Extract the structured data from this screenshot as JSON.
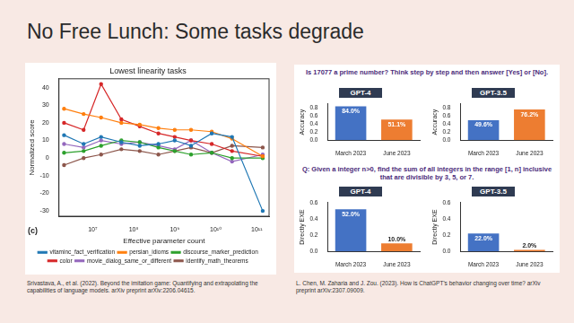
{
  "slide_title": "No Free Lunch: Some tasks degrade",
  "citations": [
    "Srivastava, A., et al. (2022). Beyond the imitation game: Quantifying and extrapolating the capabilities of language models. arXiv preprint arXiv:2206.04615.",
    "L. Chen, M. Zaharia and J. Zou. (2023). How is ChatGPT's behavior changing over time? arXiv preprint arXiv:2307.09009."
  ],
  "questions": [
    "Is 17077 a prime number? Think step by step and then answer [Yes] or [No].",
    "Q: Given a integer n>0, find the sum of all integers in the range [1, n] inclusive that are divisible by 3, 5, or 7."
  ],
  "chart_data": [
    {
      "type": "line",
      "title": "Lowest linearity tasks",
      "x_label": "Effective parameter count",
      "y_label": "Normalized score",
      "annotation": "(c)",
      "log": "x",
      "grid": false,
      "legend": "bottom",
      "marker": "circle",
      "x": [
        2000000,
        6000000,
        16000000,
        50000000,
        140000000,
        400000000,
        1000000000,
        2500000000,
        8000000000,
        25000000000,
        140000000000
      ],
      "series": [
        {
          "name": "vitaminc_fact_verification",
          "color": "#1f77b4",
          "values": [
            13,
            8,
            12,
            9,
            7,
            8,
            10,
            7,
            14,
            12,
            -30
          ]
        },
        {
          "name": "persian_idioms",
          "color": "#ff7f0e",
          "values": [
            28,
            25,
            23,
            20,
            19,
            17,
            16,
            16,
            15,
            11,
            1
          ]
        },
        {
          "name": "discourse_marker_prediction",
          "color": "#2ca02c",
          "values": [
            3,
            4,
            7,
            10,
            9,
            6,
            4,
            2,
            3,
            0,
            0
          ]
        },
        {
          "name": "color",
          "color": "#d62728",
          "values": [
            20,
            16,
            42,
            22,
            18,
            14,
            12,
            10,
            8,
            4,
            1
          ]
        },
        {
          "name": "movie_dialog_same_or_different",
          "color": "#9467bd",
          "values": [
            8,
            6,
            10,
            8,
            9,
            7,
            5,
            10,
            3,
            -2,
            2
          ]
        },
        {
          "name": "identify_math_theorems",
          "color": "#8c564b",
          "values": [
            -4,
            0,
            2,
            5,
            4,
            2,
            4,
            6,
            3,
            7,
            6
          ]
        }
      ],
      "xlim": [
        1500000,
        200000000000
      ],
      "xticks": [
        {
          "value": 10000000,
          "label": "10⁷"
        },
        {
          "value": 100000000,
          "label": "10⁸"
        },
        {
          "value": 1000000000,
          "label": "10⁹"
        },
        {
          "value": 10000000000,
          "label": "10¹⁰"
        },
        {
          "value": 100000000000,
          "label": "10¹¹"
        }
      ],
      "ylim": [
        -33,
        45
      ],
      "yticks": [
        -30,
        -20,
        -10,
        0,
        10,
        20,
        30,
        40
      ]
    },
    {
      "type": "bar",
      "title": "GPT-4",
      "y_label": "Accuracy",
      "categories": [
        "March 2023",
        "June 2023"
      ],
      "values": [
        0.84,
        0.511
      ],
      "value_labels": [
        "84.0%",
        "51.1%"
      ],
      "colors": [
        "#4472c4",
        "#ed7d31"
      ],
      "data_labels": true,
      "grid": false,
      "ylim": [
        0,
        0.9
      ],
      "yticks": [
        {
          "value": 0,
          "label": "0.0"
        },
        {
          "value": 0.2,
          "label": "0.2"
        },
        {
          "value": 0.4,
          "label": "0.4"
        },
        {
          "value": 0.6,
          "label": "0.6"
        },
        {
          "value": 0.8,
          "label": "0.8"
        }
      ]
    },
    {
      "type": "bar",
      "title": "GPT-3.5",
      "y_label": "Accuracy",
      "categories": [
        "March 2023",
        "June 2023"
      ],
      "values": [
        0.496,
        0.762
      ],
      "value_labels": [
        "49.6%",
        "76.2%"
      ],
      "colors": [
        "#4472c4",
        "#ed7d31"
      ],
      "data_labels": true,
      "grid": false,
      "ylim": [
        0,
        0.9
      ],
      "yticks": [
        {
          "value": 0,
          "label": "0.0"
        },
        {
          "value": 0.2,
          "label": "0.2"
        },
        {
          "value": 0.4,
          "label": "0.4"
        },
        {
          "value": 0.6,
          "label": "0.6"
        },
        {
          "value": 0.8,
          "label": "0.8"
        }
      ]
    },
    {
      "type": "bar",
      "title": "GPT-4",
      "y_label": "Directly EXE",
      "categories": [
        "March 2023",
        "June 2023"
      ],
      "values": [
        0.52,
        0.1
      ],
      "value_labels": [
        "52.0%",
        "10.0%"
      ],
      "colors": [
        "#4472c4",
        "#ed7d31"
      ],
      "data_labels": true,
      "grid": false,
      "ylim": [
        0,
        0.6
      ],
      "yticks": [
        {
          "value": 0,
          "label": "0.0"
        },
        {
          "value": 0.2,
          "label": "0.2"
        },
        {
          "value": 0.4,
          "label": "0.4"
        },
        {
          "value": 0.6,
          "label": "0.6"
        }
      ]
    },
    {
      "type": "bar",
      "title": "GPT-3.5",
      "y_label": "Directly EXE",
      "categories": [
        "March 2023",
        "June 2023"
      ],
      "values": [
        0.22,
        0.02
      ],
      "value_labels": [
        "22.0%",
        "2.0%"
      ],
      "colors": [
        "#4472c4",
        "#ed7d31"
      ],
      "data_labels": true,
      "grid": false,
      "ylim": [
        0,
        0.6
      ],
      "yticks": [
        {
          "value": 0,
          "label": "0.0"
        },
        {
          "value": 0.2,
          "label": "0.2"
        },
        {
          "value": 0.4,
          "label": "0.4"
        },
        {
          "value": 0.6,
          "label": "0.6"
        }
      ]
    }
  ]
}
